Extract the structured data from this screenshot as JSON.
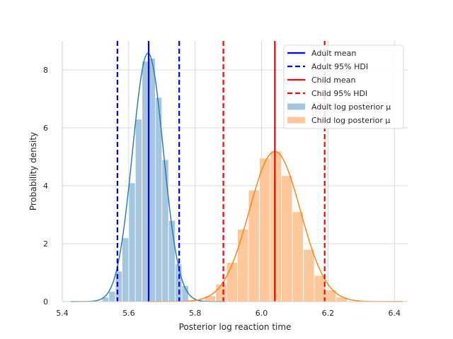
{
  "chart_data": {
    "type": "histogram",
    "title": "",
    "xlabel": "Posterior log reaction time",
    "ylabel": "Probability density",
    "xlim": [
      5.4,
      6.44
    ],
    "ylim": [
      0,
      9.0
    ],
    "xticks": [
      "5.4",
      "5.6",
      "5.8",
      "6.0",
      "6.2",
      "6.4"
    ],
    "xtick_values": [
      5.4,
      5.6,
      5.8,
      6.0,
      6.2,
      6.4
    ],
    "yticks": [
      "0",
      "2",
      "4",
      "6",
      "8"
    ],
    "ytick_values": [
      0,
      2,
      4,
      6,
      8
    ],
    "grid": true,
    "legend_position": "top-right",
    "legend": [
      {
        "label": "Adult mean",
        "kind": "line",
        "style": "solid",
        "color": "#0000ff"
      },
      {
        "label": "Adult 95% HDI",
        "kind": "line",
        "style": "dashed",
        "color": "#0000ff"
      },
      {
        "label": "Child mean",
        "kind": "line",
        "style": "solid",
        "color": "#ff0000"
      },
      {
        "label": "Child 95% HDI",
        "kind": "line",
        "style": "dashed",
        "color": "#ff0000"
      },
      {
        "label": "Adult log posterior μ",
        "kind": "patch",
        "color": "#a6c6e0"
      },
      {
        "label": "Child log posterior μ",
        "kind": "patch",
        "color": "#ffc89a"
      }
    ],
    "series": [
      {
        "name": "Adult log posterior μ",
        "color": "#a6c6e0",
        "kde_color": "#1f77b4",
        "bin_width": 0.02,
        "bin_centers": [
          5.53,
          5.55,
          5.57,
          5.59,
          5.61,
          5.63,
          5.65,
          5.67,
          5.69,
          5.71,
          5.73,
          5.75,
          5.77
        ],
        "densities": [
          0.15,
          0.35,
          1.05,
          2.2,
          4.1,
          6.3,
          8.3,
          8.4,
          7.05,
          4.9,
          2.8,
          1.3,
          0.55
        ],
        "mean": 5.66,
        "hdi": [
          5.566,
          5.752
        ],
        "kde_mean": 5.658,
        "kde_sd": 0.0465
      },
      {
        "name": "Child log posterior μ",
        "color": "#ffc89a",
        "kde_color": "#ff7f0e",
        "bin_width": 0.033,
        "bin_centers": [
          5.845,
          5.878,
          5.911,
          5.944,
          5.977,
          6.01,
          6.043,
          6.076,
          6.109,
          6.142,
          6.175,
          6.208,
          6.241
        ],
        "densities": [
          0.2,
          0.6,
          1.35,
          2.5,
          3.85,
          4.95,
          5.2,
          4.35,
          3.1,
          1.8,
          0.9,
          0.4,
          0.15
        ],
        "mean": 6.04,
        "hdi": [
          5.885,
          6.19
        ],
        "kde_mean": 6.04,
        "kde_sd": 0.077
      }
    ]
  }
}
